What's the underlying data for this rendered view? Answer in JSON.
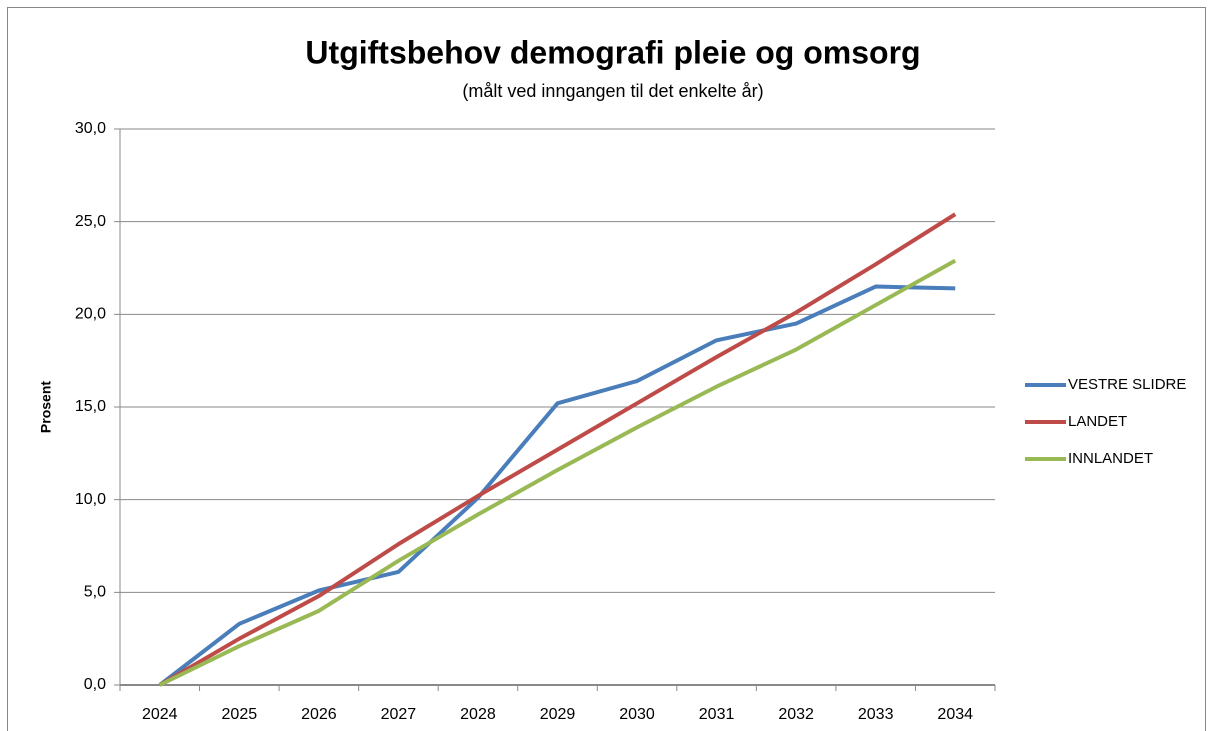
{
  "chart_data": {
    "type": "line",
    "title": "Utgiftsbehov demografi pleie og omsorg",
    "subtitle": "(målt ved inngangen til det enkelte år)",
    "y_label": "Prosent",
    "categories": [
      "2024",
      "2025",
      "2026",
      "2027",
      "2028",
      "2029",
      "2030",
      "2031",
      "2032",
      "2033",
      "2034"
    ],
    "series": [
      {
        "name": "VESTRE SLIDRE",
        "color": "#4a7ebb",
        "values": [
          0,
          3.3,
          5.1,
          6.1,
          10.1,
          15.2,
          16.4,
          18.6,
          19.5,
          21.5,
          21.4
        ]
      },
      {
        "name": "LANDET",
        "color": "#be4b48",
        "values": [
          0,
          2.5,
          4.8,
          7.6,
          10.2,
          12.7,
          15.2,
          17.7,
          20.1,
          22.7,
          25.4
        ]
      },
      {
        "name": "INNLANDET",
        "color": "#98b954",
        "values": [
          0,
          2.1,
          4.0,
          6.7,
          9.2,
          11.6,
          13.9,
          16.1,
          18.1,
          20.5,
          22.9
        ]
      }
    ],
    "ylim": [
      0,
      30
    ],
    "yticks": [
      {
        "value": 0,
        "label": "0,0"
      },
      {
        "value": 5,
        "label": "5,0"
      },
      {
        "value": 10,
        "label": "10,0"
      },
      {
        "value": 15,
        "label": "15,0"
      },
      {
        "value": 20,
        "label": "20,0"
      },
      {
        "value": 25,
        "label": "25,0"
      },
      {
        "value": 30,
        "label": "30,0"
      }
    ],
    "grid": true,
    "legend": "right"
  }
}
